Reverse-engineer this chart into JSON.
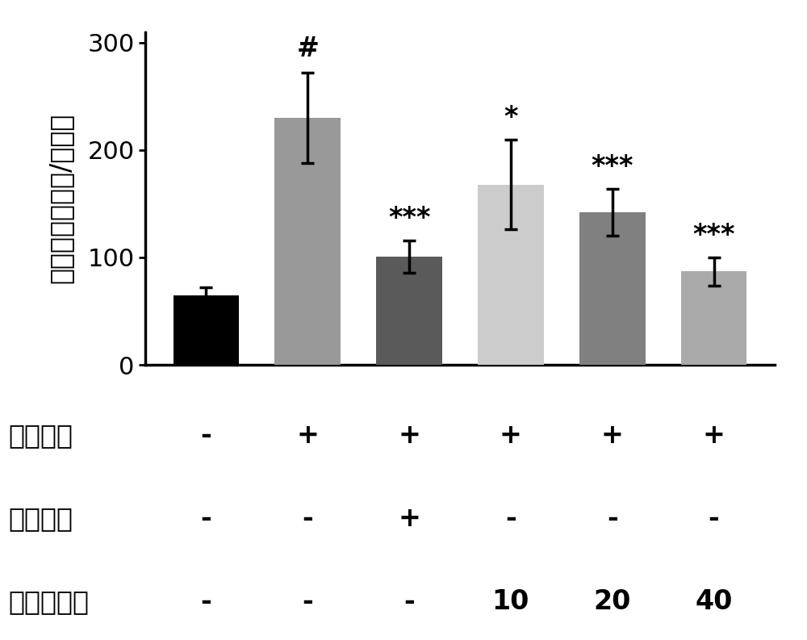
{
  "bar_values": [
    65,
    230,
    101,
    168,
    142,
    87
  ],
  "bar_errors": [
    7,
    42,
    15,
    42,
    22,
    13
  ],
  "bar_colors": [
    "#000000",
    "#999999",
    "#5a5a5a",
    "#cccccc",
    "#808080",
    "#aaaaaa"
  ],
  "bar_positions": [
    1,
    2,
    3,
    4,
    5,
    6
  ],
  "ylabel": "羟脯氨酸（纳克/毫升）",
  "ylim": [
    0,
    310
  ],
  "yticks": [
    0,
    100,
    200,
    300
  ],
  "significance_labels": [
    "#",
    "***",
    "*",
    "***",
    "***"
  ],
  "significance_positions": [
    2,
    3,
    4,
    5,
    6
  ],
  "row_labels": [
    "胆管结扎",
    "秋水仙碱",
    "五味子醇乙"
  ],
  "row1_values": [
    "-",
    "+",
    "+",
    "+",
    "+",
    "+"
  ],
  "row2_values": [
    "-",
    "-",
    "+",
    "-",
    "-",
    "-"
  ],
  "row3_values": [
    "-",
    "-",
    "-",
    "10",
    "20",
    "40"
  ],
  "background_color": "#ffffff",
  "bar_width": 0.65,
  "label_fontsize": 24,
  "tick_fontsize": 22,
  "sig_fontsize": 24,
  "row_label_fontsize": 24,
  "row_value_fontsize": 24
}
